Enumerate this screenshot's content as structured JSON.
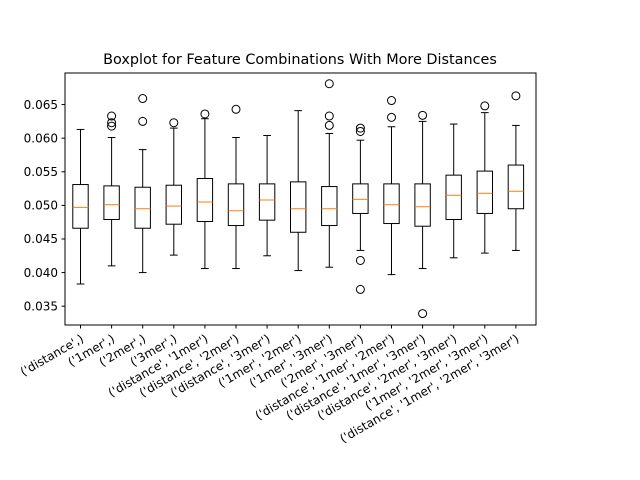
{
  "chart_data": {
    "type": "boxplot",
    "title": "Boxplot for Feature Combinations With More Distances",
    "xlabel": "",
    "ylabel": "",
    "ylim": [
      0.0322,
      0.0697
    ],
    "yticks": [
      "0.035",
      "0.040",
      "0.045",
      "0.050",
      "0.055",
      "0.060",
      "0.065"
    ],
    "ytick_values": [
      0.035,
      0.04,
      0.045,
      0.05,
      0.055,
      0.06,
      0.065
    ],
    "grid": false,
    "categories": [
      "('distance',)",
      "('1mer',)",
      "('2mer',)",
      "('3mer',)",
      "('distance', '1mer')",
      "('distance', '2mer')",
      "('distance', '3mer')",
      "('1mer', '2mer')",
      "('1mer', '3mer')",
      "('2mer', '3mer')",
      "('distance', '1mer', '2mer')",
      "('distance', '1mer', '3mer')",
      "('distance', '2mer', '3mer')",
      "('1mer', '2mer', '3mer')",
      "('distance', '1mer', '2mer', '3mer')"
    ],
    "boxes": [
      {
        "whislo": 0.0383,
        "q1": 0.0466,
        "median": 0.0497,
        "q3": 0.0531,
        "whishi": 0.0613,
        "fliers": []
      },
      {
        "whislo": 0.041,
        "q1": 0.0479,
        "median": 0.0501,
        "q3": 0.0529,
        "whishi": 0.0601,
        "fliers": [
          0.0633,
          0.0623,
          0.0618
        ]
      },
      {
        "whislo": 0.04,
        "q1": 0.0466,
        "median": 0.0495,
        "q3": 0.0527,
        "whishi": 0.0583,
        "fliers": [
          0.0659,
          0.0625
        ]
      },
      {
        "whislo": 0.0426,
        "q1": 0.0472,
        "median": 0.0499,
        "q3": 0.053,
        "whishi": 0.0615,
        "fliers": [
          0.0623
        ]
      },
      {
        "whislo": 0.0406,
        "q1": 0.0476,
        "median": 0.0505,
        "q3": 0.054,
        "whishi": 0.0629,
        "fliers": [
          0.0636
        ]
      },
      {
        "whislo": 0.0406,
        "q1": 0.047,
        "median": 0.0492,
        "q3": 0.0532,
        "whishi": 0.0601,
        "fliers": [
          0.0643
        ]
      },
      {
        "whislo": 0.0425,
        "q1": 0.0478,
        "median": 0.0508,
        "q3": 0.0532,
        "whishi": 0.0604,
        "fliers": []
      },
      {
        "whislo": 0.0403,
        "q1": 0.046,
        "median": 0.0495,
        "q3": 0.0535,
        "whishi": 0.0641,
        "fliers": []
      },
      {
        "whislo": 0.0408,
        "q1": 0.047,
        "median": 0.0495,
        "q3": 0.0528,
        "whishi": 0.0607,
        "fliers": [
          0.0681,
          0.0633,
          0.0619
        ]
      },
      {
        "whislo": 0.0433,
        "q1": 0.0488,
        "median": 0.0509,
        "q3": 0.0532,
        "whishi": 0.0597,
        "fliers": [
          0.0615,
          0.061,
          0.0418,
          0.0375
        ]
      },
      {
        "whislo": 0.0397,
        "q1": 0.0473,
        "median": 0.0501,
        "q3": 0.0532,
        "whishi": 0.0617,
        "fliers": [
          0.0656,
          0.0631
        ]
      },
      {
        "whislo": 0.0406,
        "q1": 0.0469,
        "median": 0.0498,
        "q3": 0.0532,
        "whishi": 0.0625,
        "fliers": [
          0.0634,
          0.0339
        ]
      },
      {
        "whislo": 0.0422,
        "q1": 0.0479,
        "median": 0.0515,
        "q3": 0.0545,
        "whishi": 0.0621,
        "fliers": []
      },
      {
        "whislo": 0.0429,
        "q1": 0.0488,
        "median": 0.0518,
        "q3": 0.0551,
        "whishi": 0.0638,
        "fliers": [
          0.0648
        ]
      },
      {
        "whislo": 0.0433,
        "q1": 0.0495,
        "median": 0.0521,
        "q3": 0.056,
        "whishi": 0.0619,
        "fliers": [
          0.0663
        ]
      }
    ]
  }
}
